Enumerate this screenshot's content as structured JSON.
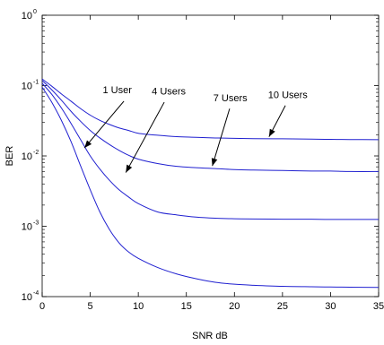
{
  "chart_data": {
    "type": "line",
    "title": "",
    "xlabel": "SNR  dB",
    "ylabel": "BER",
    "xlim": [
      0,
      35
    ],
    "ylim": [
      0.0001,
      1
    ],
    "yscale": "log",
    "grid": false,
    "legend": "none",
    "line_color": "#2020d0",
    "x_ticks": [
      {
        "value": 0,
        "label": "0"
      },
      {
        "value": 5,
        "label": "5"
      },
      {
        "value": 10,
        "label": "10"
      },
      {
        "value": 15,
        "label": "15"
      },
      {
        "value": 20,
        "label": "20"
      },
      {
        "value": 25,
        "label": "25"
      },
      {
        "value": 30,
        "label": "30"
      },
      {
        "value": 35,
        "label": "35"
      }
    ],
    "y_ticks": [
      {
        "value": 1,
        "base": "10",
        "exp": "0"
      },
      {
        "value": 0.1,
        "base": "10",
        "exp": "-1"
      },
      {
        "value": 0.01,
        "base": "10",
        "exp": "-2"
      },
      {
        "value": 0.001,
        "base": "10",
        "exp": "-3"
      },
      {
        "value": 0.0001,
        "base": "10",
        "exp": "-4"
      }
    ],
    "x": [
      0,
      1,
      2,
      3,
      4,
      5,
      6,
      7,
      8,
      9,
      10,
      12,
      14,
      16,
      18,
      20,
      22,
      25,
      28,
      30,
      32,
      35
    ],
    "series": [
      {
        "values": [
          0.124,
          0.098,
          0.076,
          0.06,
          0.047,
          0.038,
          0.032,
          0.028,
          0.025,
          0.023,
          0.021,
          0.0197,
          0.0188,
          0.0184,
          0.018,
          0.0178,
          0.0176,
          0.0175,
          0.0173,
          0.0172,
          0.0171,
          0.017
        ]
      },
      {
        "values": [
          0.118,
          0.087,
          0.062,
          0.043,
          0.031,
          0.023,
          0.018,
          0.0145,
          0.012,
          0.0102,
          0.009,
          0.0078,
          0.0071,
          0.0068,
          0.0066,
          0.0064,
          0.0063,
          0.0062,
          0.0061,
          0.0061,
          0.006,
          0.006
        ]
      },
      {
        "values": [
          0.108,
          0.075,
          0.048,
          0.029,
          0.017,
          0.01,
          0.0065,
          0.0045,
          0.0033,
          0.0026,
          0.0021,
          0.0016,
          0.00145,
          0.00135,
          0.0013,
          0.00128,
          0.00127,
          0.00126,
          0.00126,
          0.00125,
          0.00125,
          0.00125
        ]
      },
      {
        "values": [
          0.095,
          0.058,
          0.032,
          0.016,
          0.0072,
          0.0033,
          0.0016,
          0.0009,
          0.00058,
          0.00043,
          0.00035,
          0.00026,
          0.00021,
          0.00018,
          0.00016,
          0.00015,
          0.000145,
          0.00014,
          0.000138,
          0.000137,
          0.000136,
          0.000135
        ]
      }
    ],
    "annotations": [
      {
        "text": "1 User",
        "text_x": 6.3,
        "text_y": 0.078,
        "arrow_from": [
          8.5,
          0.06
        ],
        "arrow_to": [
          4.4,
          0.013
        ]
      },
      {
        "text": "4 Users",
        "text_x": 11.4,
        "text_y": 0.075,
        "arrow_from": [
          12.7,
          0.058
        ],
        "arrow_to": [
          8.7,
          0.0058
        ]
      },
      {
        "text": "7 Users",
        "text_x": 17.8,
        "text_y": 0.06,
        "arrow_from": [
          19.5,
          0.047
        ],
        "arrow_to": [
          17.7,
          0.0072
        ]
      },
      {
        "text": "10 Users",
        "text_x": 23.5,
        "text_y": 0.066,
        "arrow_from": [
          25.3,
          0.052
        ],
        "arrow_to": [
          23.6,
          0.0187
        ]
      }
    ]
  }
}
